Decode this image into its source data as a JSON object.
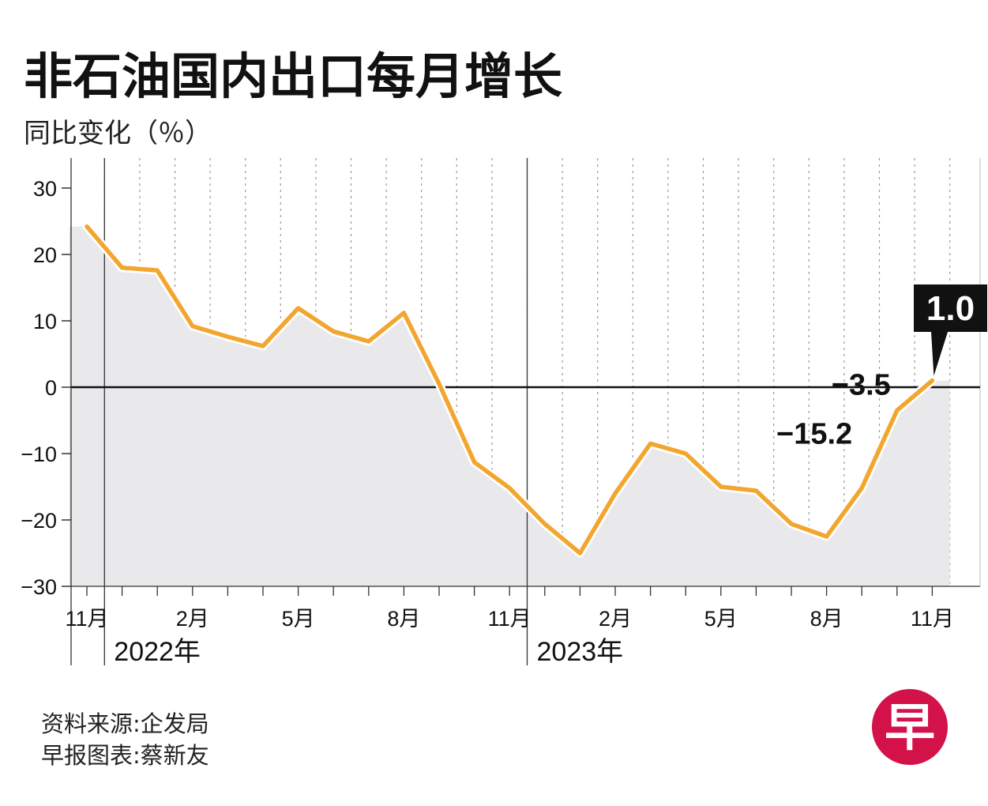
{
  "title": "非石油国内出口每月增长",
  "subtitle": "同比变化（％）",
  "chart_data": {
    "type": "area",
    "x": [
      "2021-11",
      "2021-12",
      "2022-01",
      "2022-02",
      "2022-03",
      "2022-04",
      "2022-05",
      "2022-06",
      "2022-07",
      "2022-08",
      "2022-09",
      "2022-10",
      "2022-11",
      "2022-12",
      "2023-01",
      "2023-02",
      "2023-03",
      "2023-04",
      "2023-05",
      "2023-06",
      "2023-07",
      "2023-08",
      "2023-09",
      "2023-10",
      "2023-11"
    ],
    "values": [
      24.2,
      18.0,
      17.6,
      9.2,
      7.6,
      6.2,
      11.9,
      8.4,
      6.9,
      11.2,
      0.5,
      -11.3,
      -15.2,
      -20.6,
      -25.0,
      -16.0,
      -8.5,
      -10.0,
      -15.0,
      -15.6,
      -20.6,
      -22.5,
      -15.2,
      -3.5,
      1.0
    ],
    "ylim": [
      -30,
      30
    ],
    "yticks": [
      {
        "v": 30,
        "label": "30"
      },
      {
        "v": 20,
        "label": "20"
      },
      {
        "v": 10,
        "label": "10"
      },
      {
        "v": 0,
        "label": "0"
      },
      {
        "v": -10,
        "label": "−10"
      },
      {
        "v": -20,
        "label": "−20"
      },
      {
        "v": -30,
        "label": "−30"
      }
    ],
    "xticks": [
      {
        "i": 0,
        "label": "11月"
      },
      {
        "i": 3,
        "label": "2月"
      },
      {
        "i": 6,
        "label": "5月"
      },
      {
        "i": 9,
        "label": "8月"
      },
      {
        "i": 12,
        "label": "11月"
      },
      {
        "i": 15,
        "label": "2月"
      },
      {
        "i": 18,
        "label": "5月"
      },
      {
        "i": 21,
        "label": "8月"
      },
      {
        "i": 24,
        "label": "11月"
      }
    ],
    "year_labels": [
      {
        "i": 2,
        "label": "2022年"
      },
      {
        "i": 14,
        "label": "2023年"
      }
    ],
    "annotations": [
      {
        "i": 22,
        "label": "−15.2"
      },
      {
        "i": 23,
        "label": "−3.5"
      }
    ],
    "callout": {
      "i": 24,
      "label": "1.0"
    },
    "grid": "vertical-dotted",
    "line_color": "#f2a630",
    "fill_color": "#e9e9ec",
    "callout_color": "#111111"
  },
  "source": "资料来源:企发局",
  "credit": "早报图表:蔡新友",
  "logo": {
    "char": "早",
    "color": "#d3124a"
  }
}
